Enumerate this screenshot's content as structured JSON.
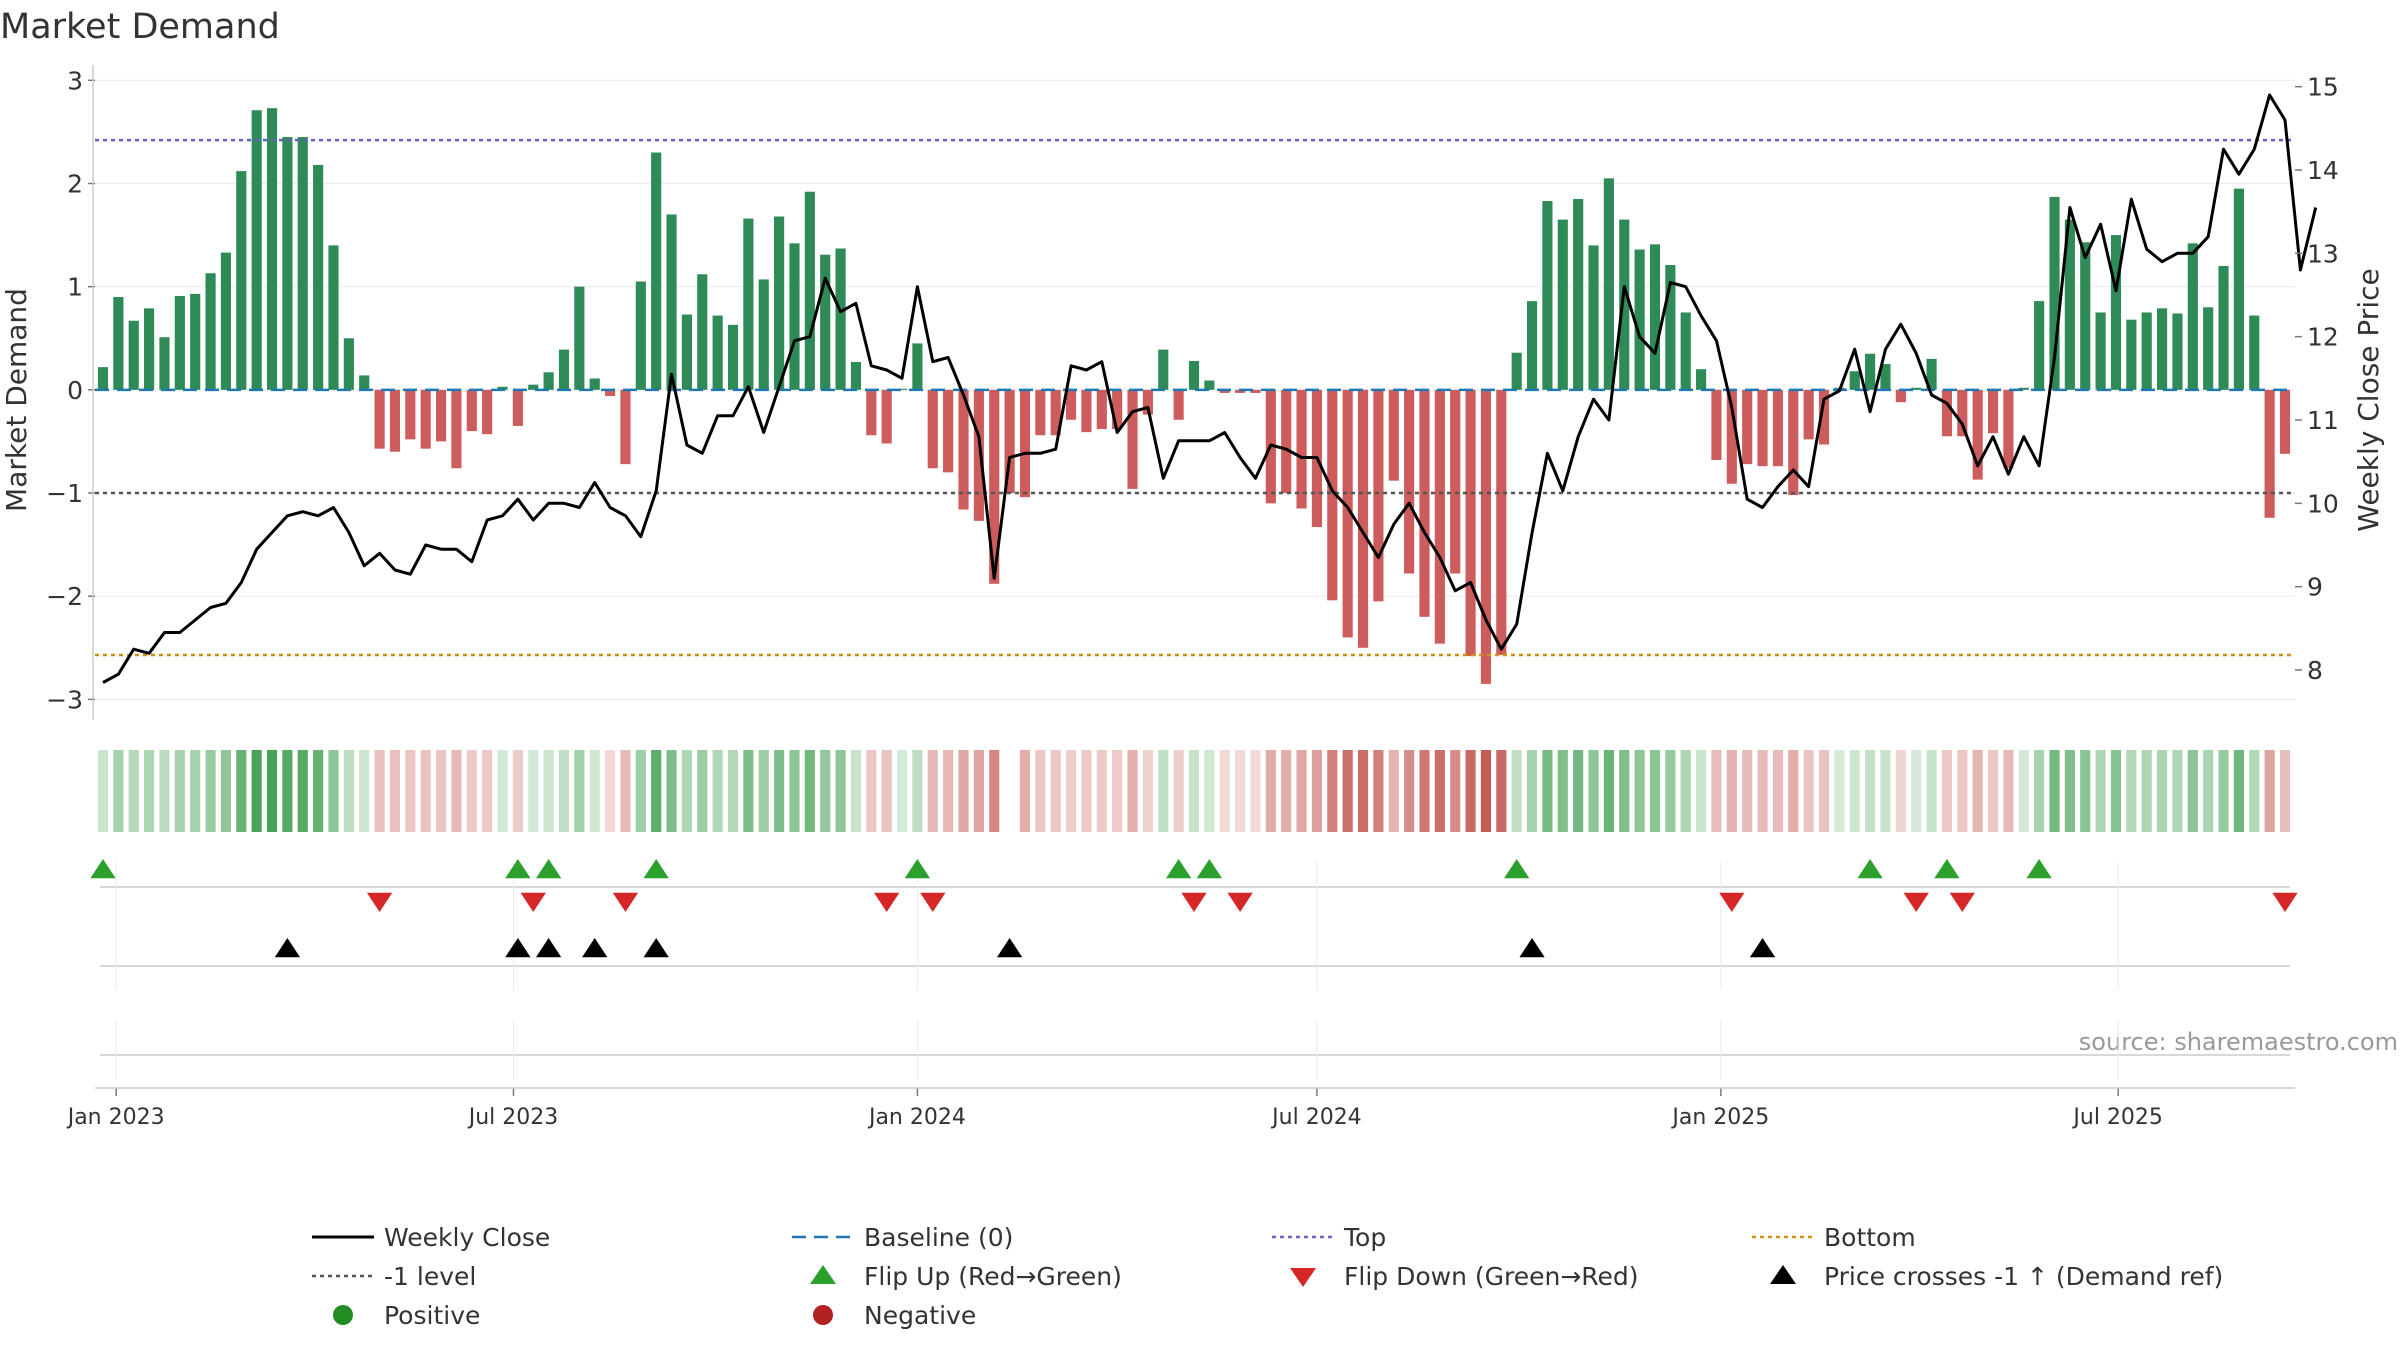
{
  "chart_data": {
    "type": "bar",
    "title": "Market Demand",
    "ylabel": "Market Demand",
    "y2label": "Weekly Close Price",
    "ylim": [
      -3.2,
      3.1
    ],
    "y2lim": [
      7.4,
      15.2
    ],
    "yticks": [
      "3",
      "2",
      "1",
      "0",
      "−1",
      "−2",
      "−3"
    ],
    "y2ticks": [
      "15",
      "14",
      "13",
      "12",
      "11",
      "10",
      "9",
      "8"
    ],
    "xticks": [
      "Jan 2023",
      "Jul 2023",
      "Jan 2024",
      "Jul 2024",
      "Jan 2025",
      "Jul 2025"
    ],
    "reference_lines": {
      "top": 2.42,
      "bottom": -2.57,
      "minus_one": -1.0,
      "baseline": 0
    },
    "start_date": "2022-12-26",
    "weeks": 143,
    "series": [
      {
        "name": "Market Demand",
        "values": [
          0.22,
          0.9,
          0.67,
          0.79,
          0.51,
          0.91,
          0.93,
          1.13,
          1.33,
          2.12,
          2.71,
          2.73,
          2.45,
          2.45,
          2.18,
          1.4,
          0.5,
          0.14,
          -0.57,
          -0.6,
          -0.48,
          -0.57,
          -0.5,
          -0.76,
          -0.4,
          -0.43,
          0.03,
          -0.35,
          0.05,
          0.17,
          0.39,
          1.0,
          0.11,
          -0.06,
          -0.72,
          1.05,
          2.3,
          1.7,
          0.73,
          1.12,
          0.72,
          0.63,
          1.66,
          1.07,
          1.68,
          1.42,
          1.92,
          1.31,
          1.37,
          0.27,
          -0.44,
          -0.52,
          0.01,
          0.45,
          -0.76,
          -0.8,
          -1.16,
          -1.27,
          -1.88,
          -1.0,
          -1.04,
          -0.44,
          -0.44,
          -0.29,
          -0.41,
          -0.38,
          -0.38,
          -0.96,
          -0.24,
          0.39,
          -0.29,
          0.28,
          0.09,
          -0.03,
          -0.03,
          -0.03,
          -1.1,
          -1.0,
          -1.15,
          -1.33,
          -2.04,
          -2.4,
          -2.5,
          -2.05,
          -0.88,
          -1.78,
          -2.2,
          -2.46,
          -1.78,
          -2.58,
          -2.85,
          -2.57,
          0.36,
          0.86,
          1.83,
          1.65,
          1.85,
          1.4,
          2.05,
          1.65,
          1.36,
          1.41,
          1.21,
          0.75,
          0.2,
          -0.68,
          -0.91,
          -0.72,
          -0.74,
          -0.74,
          -1.02,
          -0.48,
          -0.53,
          0.02,
          0.18,
          0.35,
          0.25,
          -0.12,
          0.02,
          0.3,
          -0.45,
          -0.45,
          -0.87,
          -0.42,
          -0.76,
          0.02,
          0.86,
          1.87,
          1.65,
          1.43,
          0.75,
          1.5,
          0.68,
          0.75,
          0.79,
          0.74,
          1.42,
          0.8,
          1.2,
          1.95,
          0.72,
          -1.24,
          -0.62
        ]
      },
      {
        "name": "Weekly Close",
        "values": [
          7.85,
          7.95,
          8.25,
          8.2,
          8.45,
          8.45,
          8.6,
          8.75,
          8.8,
          9.05,
          9.45,
          9.65,
          9.85,
          9.9,
          9.85,
          9.95,
          9.65,
          9.25,
          9.4,
          9.2,
          9.15,
          9.5,
          9.45,
          9.45,
          9.3,
          9.8,
          9.85,
          10.05,
          9.8,
          10.0,
          10.0,
          9.95,
          10.25,
          9.95,
          9.85,
          9.6,
          10.15,
          11.55,
          10.7,
          10.6,
          11.05,
          11.05,
          11.4,
          10.85,
          11.4,
          11.95,
          12.0,
          12.7,
          12.3,
          12.4,
          11.65,
          11.6,
          11.5,
          12.6,
          11.7,
          11.75,
          11.3,
          10.8,
          9.1,
          10.55,
          10.6,
          10.6,
          10.65,
          11.65,
          11.6,
          11.7,
          10.85,
          11.1,
          11.15,
          10.3,
          10.75,
          10.75,
          10.75,
          10.85,
          10.55,
          10.3,
          10.7,
          10.65,
          10.55,
          10.55,
          10.15,
          9.95,
          9.65,
          9.35,
          9.75,
          10.0,
          9.65,
          9.35,
          8.95,
          9.05,
          8.6,
          8.25,
          8.55,
          9.65,
          10.6,
          10.15,
          10.8,
          11.25,
          11.0,
          12.6,
          12.0,
          11.8,
          12.65,
          12.6,
          12.25,
          11.95,
          11.15,
          10.05,
          9.95,
          10.2,
          10.4,
          10.2,
          11.25,
          11.35,
          11.85,
          11.1,
          11.85,
          12.15,
          11.8,
          11.3,
          11.2,
          10.95,
          10.45,
          10.8,
          10.35,
          10.8,
          10.45,
          11.75,
          13.55,
          12.95,
          13.35,
          12.55,
          13.65,
          13.05,
          12.9,
          13.0,
          13.0,
          13.2,
          14.25,
          13.95,
          14.25,
          14.9,
          14.6,
          12.8,
          13.55
        ]
      }
    ],
    "markers": {
      "flip_up_weeks": [
        0,
        27,
        29,
        36,
        53,
        70,
        72,
        92,
        115,
        120,
        126
      ],
      "flip_down_weeks": [
        18,
        28,
        34,
        51,
        54,
        71,
        74,
        106,
        118,
        121,
        142
      ],
      "cross_up_weeks": [
        12,
        27,
        29,
        32,
        36,
        59,
        93,
        108
      ]
    },
    "legend": [
      {
        "label": "Weekly Close",
        "kind": "line",
        "color": "#000000"
      },
      {
        "label": "Baseline (0)",
        "kind": "dash",
        "color": "#1f77b4"
      },
      {
        "label": "Top",
        "kind": "dot",
        "color": "#6a5acd"
      },
      {
        "label": "Bottom",
        "kind": "dot",
        "color": "#d4900a"
      },
      {
        "label": "-1 level",
        "kind": "dot",
        "color": "#555555"
      },
      {
        "label": "Flip Up (Red→Green)",
        "kind": "tri-up",
        "color": "#2ca02c"
      },
      {
        "label": "Flip Down (Green→Red)",
        "kind": "tri-down",
        "color": "#d62728"
      },
      {
        "label": "Price crosses -1 ↑ (Demand ref)",
        "kind": "tri-up",
        "color": "#000000"
      },
      {
        "label": "Positive",
        "kind": "circle",
        "color": "#228B22"
      },
      {
        "label": "Negative",
        "kind": "circle",
        "color": "#B22222"
      }
    ],
    "source": "source: sharemaestro.com",
    "colors": {
      "positive": "#2e8a57",
      "negative": "#cd5c5c",
      "price": "#000000",
      "top": "#6a5acd",
      "bottom": "#d4900a",
      "minus_one": "#555555",
      "baseline": "#1f77b4"
    }
  }
}
